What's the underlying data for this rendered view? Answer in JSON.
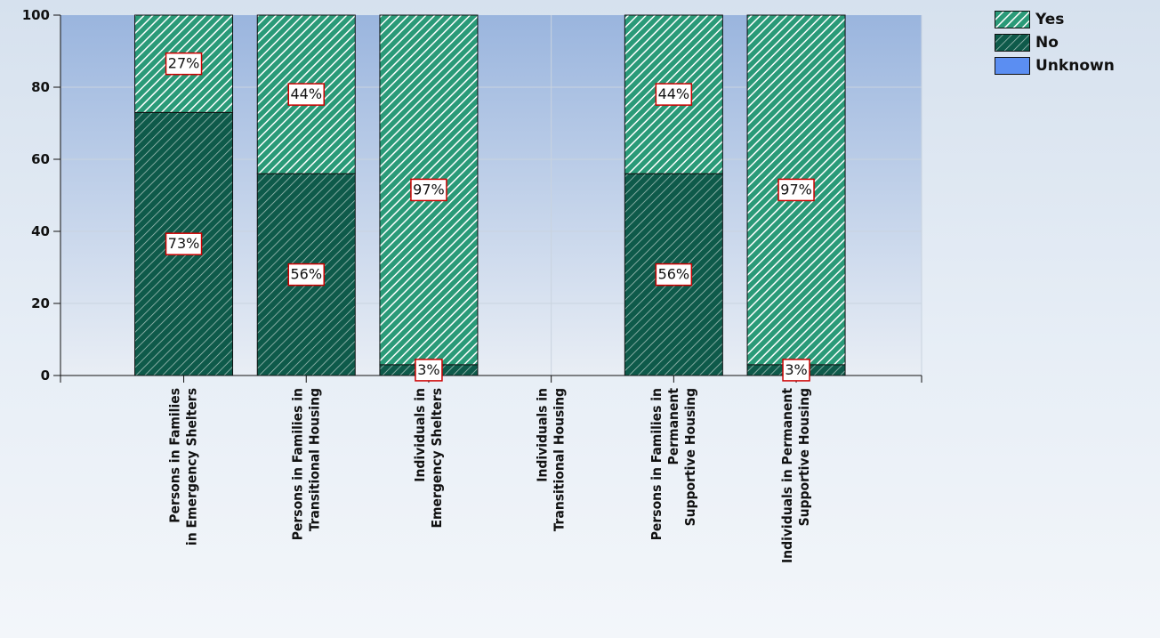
{
  "chart_data": {
    "type": "bar",
    "stacked": true,
    "categories": [
      [
        "Persons in Families",
        "in Emergency Shelters"
      ],
      [
        "Persons in Families in",
        "Transitional Housing"
      ],
      [
        "Individuals in",
        "Emergency Shelters"
      ],
      [
        "Individuals in",
        "Transitional Housing"
      ],
      [
        "Persons in Families in",
        "Permanent",
        "Supportive Housing"
      ],
      [
        "Individuals in Permanent",
        "Supportive Housing"
      ]
    ],
    "series": [
      {
        "name": "No",
        "values": [
          73,
          56,
          3,
          0,
          56,
          3
        ],
        "labels": [
          "73%",
          "56%",
          "3%",
          "",
          "56%",
          "3%"
        ],
        "color": "#0e5a4a",
        "pattern": "hatch-dark"
      },
      {
        "name": "Yes",
        "values": [
          27,
          44,
          97,
          0,
          44,
          97
        ],
        "labels": [
          "27%",
          "44%",
          "97%",
          "",
          "44%",
          "97%"
        ],
        "color": "#2a9a78",
        "pattern": "hatch-light"
      },
      {
        "name": "Unknown",
        "values": [
          0,
          0,
          0,
          0,
          0,
          0
        ],
        "labels": [
          "",
          "",
          "",
          "",
          "",
          ""
        ],
        "color": "#5b8ef2",
        "pattern": "solid"
      }
    ],
    "legend_order": [
      "Yes",
      "No",
      "Unknown"
    ],
    "ylim": [
      0,
      100
    ],
    "yticks": [
      "0",
      "20",
      "40",
      "60",
      "80",
      "100"
    ],
    "grid": true,
    "legend": "top-right",
    "label_border_color": "#cc0000"
  }
}
